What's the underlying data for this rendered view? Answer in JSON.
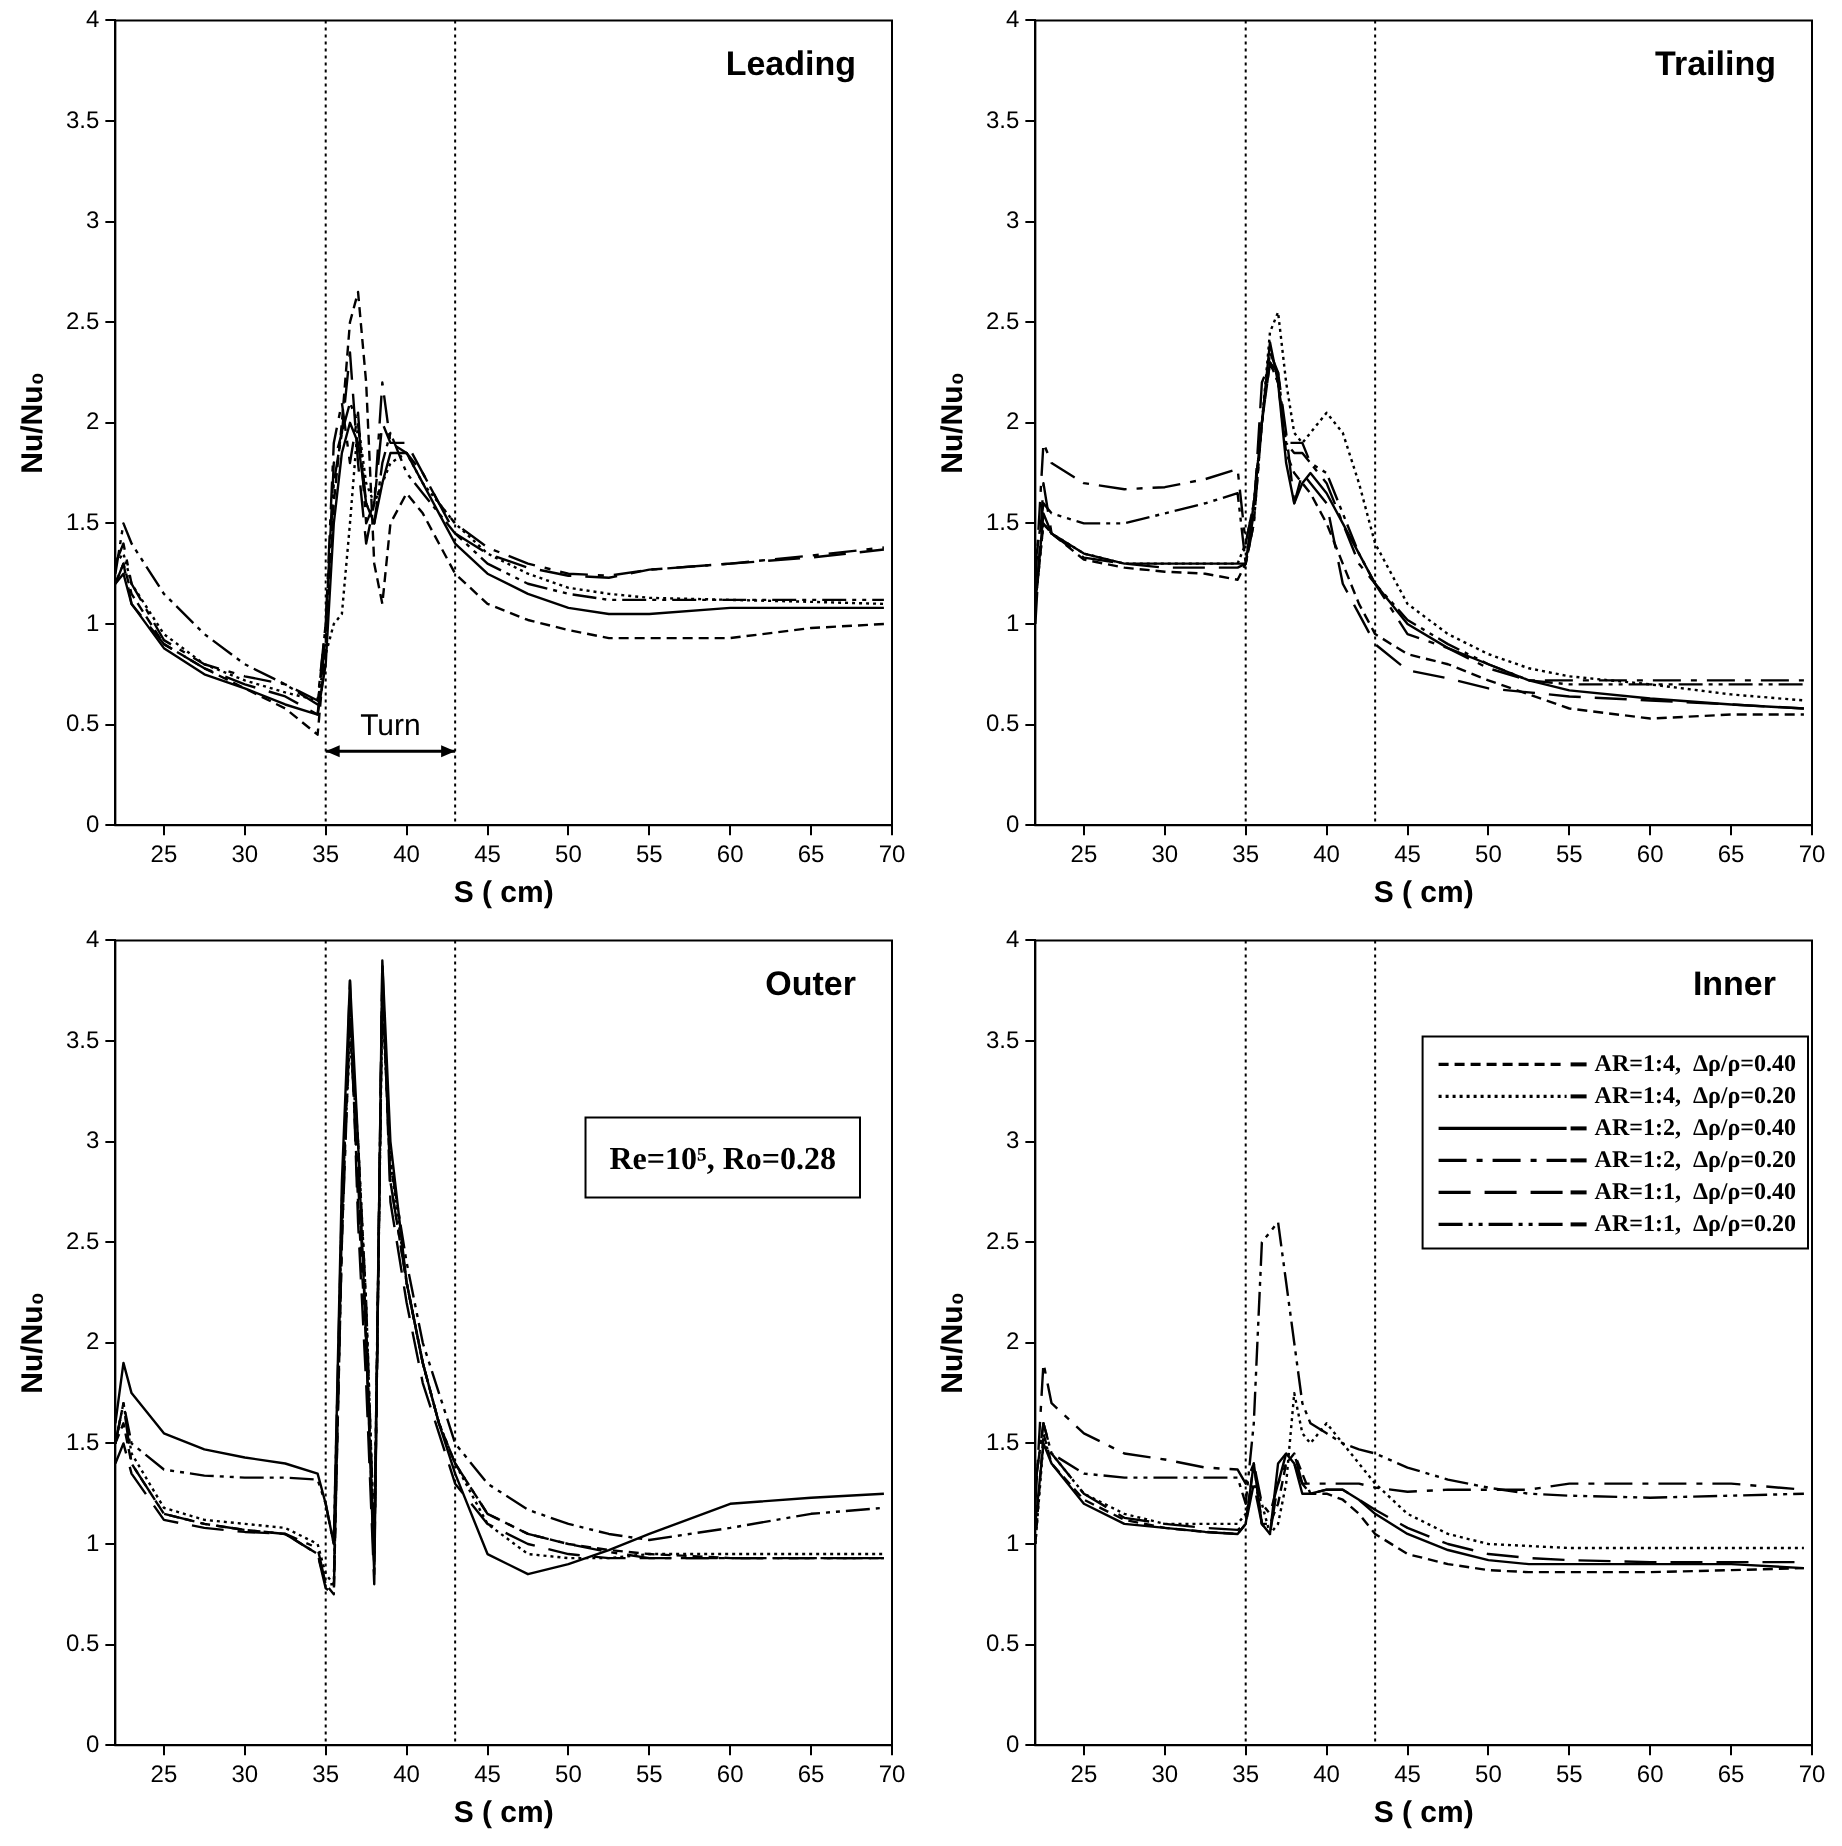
{
  "chart_data": [
    {
      "type": "line",
      "title": "Leading",
      "xlabel": "S ( cm)",
      "ylabel": "Nu/Nu₀",
      "xlim": [
        22,
        70
      ],
      "xticks": [
        25,
        30,
        35,
        40,
        45,
        50,
        55,
        60,
        65,
        70
      ],
      "ylim": [
        0,
        4
      ],
      "yticks": [
        0,
        0.5,
        1,
        1.5,
        2,
        2.5,
        3,
        3.5,
        4
      ],
      "grid": false,
      "legend": false,
      "x": [
        22,
        22.5,
        23,
        25,
        27.5,
        30,
        32.5,
        34.5,
        35,
        35.5,
        36,
        36.5,
        37,
        37.5,
        38,
        38.5,
        39,
        40,
        41,
        42,
        43,
        45,
        47.5,
        50,
        52.5,
        55,
        60,
        65,
        69.5
      ],
      "ref_lines": [
        {
          "axis": "x",
          "value": 35,
          "line_style": "dotted"
        },
        {
          "axis": "x",
          "value": 43,
          "line_style": "dotted"
        }
      ],
      "annotations": [
        "Turn"
      ],
      "series": [
        {
          "color": "#000000",
          "line_style": "dashed",
          "values": [
            1.2,
            1.3,
            1.15,
            0.9,
            0.78,
            0.68,
            0.58,
            0.45,
            0.9,
            1.6,
            2.0,
            2.5,
            2.65,
            2.2,
            1.3,
            1.1,
            1.5,
            1.65,
            1.55,
            1.4,
            1.25,
            1.1,
            1.02,
            0.97,
            0.93,
            0.93,
            0.93,
            0.98,
            1.0
          ]
        },
        {
          "color": "#000000",
          "line_style": "dotted",
          "values": [
            1.3,
            1.35,
            1.2,
            0.95,
            0.8,
            0.72,
            0.66,
            0.62,
            0.85,
            1.0,
            1.05,
            1.5,
            2.0,
            1.7,
            1.6,
            1.7,
            1.8,
            1.85,
            1.7,
            1.6,
            1.5,
            1.35,
            1.25,
            1.18,
            1.15,
            1.13,
            1.12,
            1.11,
            1.1
          ]
        },
        {
          "color": "#000000",
          "line_style": "solid",
          "values": [
            1.2,
            1.25,
            1.1,
            0.88,
            0.75,
            0.68,
            0.6,
            0.55,
            0.8,
            1.5,
            1.85,
            2.0,
            1.9,
            1.6,
            1.5,
            1.7,
            1.85,
            1.85,
            1.7,
            1.55,
            1.4,
            1.25,
            1.15,
            1.08,
            1.05,
            1.05,
            1.08,
            1.08,
            1.08
          ]
        },
        {
          "color": "#000000",
          "line_style": "dashed",
          "values": [
            1.3,
            1.4,
            1.2,
            0.92,
            0.8,
            0.74,
            0.7,
            0.62,
            1.0,
            1.9,
            2.1,
            1.8,
            2.05,
            1.5,
            1.6,
            2.2,
            1.9,
            1.85,
            1.75,
            1.6,
            1.5,
            1.38,
            1.3,
            1.25,
            1.24,
            1.27,
            1.3,
            1.34,
            1.38
          ]
        },
        {
          "color": "#000000",
          "line_style": "dashed",
          "values": [
            1.2,
            1.3,
            1.1,
            0.9,
            0.78,
            0.7,
            0.64,
            0.55,
            0.95,
            1.8,
            1.95,
            2.35,
            1.8,
            1.4,
            1.6,
            2.0,
            1.9,
            1.9,
            1.75,
            1.6,
            1.45,
            1.35,
            1.28,
            1.24,
            1.23,
            1.27,
            1.3,
            1.33,
            1.37
          ]
        },
        {
          "color": "#000000",
          "line_style": "dashed",
          "values": [
            1.25,
            1.5,
            1.4,
            1.15,
            0.95,
            0.8,
            0.7,
            0.6,
            1.0,
            1.7,
            1.95,
            2.1,
            2.0,
            1.6,
            1.5,
            1.8,
            1.95,
            1.75,
            1.65,
            1.55,
            1.45,
            1.3,
            1.2,
            1.15,
            1.12,
            1.12,
            1.12,
            1.12,
            1.12
          ]
        }
      ]
    },
    {
      "type": "line",
      "title": "Trailing",
      "xlabel": "S ( cm)",
      "ylabel": "Nu/Nu₀",
      "xlim": [
        22,
        70
      ],
      "xticks": [
        25,
        30,
        35,
        40,
        45,
        50,
        55,
        60,
        65,
        70
      ],
      "ylim": [
        0,
        4
      ],
      "yticks": [
        0,
        0.5,
        1,
        1.5,
        2,
        2.5,
        3,
        3.5,
        4
      ],
      "grid": false,
      "legend": false,
      "x": [
        22,
        22.5,
        23,
        25,
        27.5,
        30,
        32.5,
        34.5,
        35,
        35.5,
        36,
        36.5,
        37,
        37.5,
        38,
        38.5,
        39,
        40,
        41,
        42,
        43,
        45,
        47.5,
        50,
        52.5,
        55,
        60,
        65,
        69.5
      ],
      "ref_lines": [
        {
          "axis": "x",
          "value": 35,
          "line_style": "dotted"
        },
        {
          "axis": "x",
          "value": 43,
          "line_style": "dotted"
        }
      ],
      "series": [
        {
          "color": "#000000",
          "line_style": "dashed",
          "values": [
            1.1,
            1.5,
            1.45,
            1.32,
            1.28,
            1.26,
            1.25,
            1.22,
            1.3,
            1.5,
            2.0,
            2.3,
            2.2,
            1.85,
            1.75,
            1.7,
            1.65,
            1.5,
            1.3,
            1.1,
            0.95,
            0.85,
            0.8,
            0.72,
            0.65,
            0.58,
            0.53,
            0.55,
            0.55
          ]
        },
        {
          "color": "#000000",
          "line_style": "dotted",
          "values": [
            1.1,
            1.5,
            1.45,
            1.35,
            1.3,
            1.3,
            1.3,
            1.3,
            1.4,
            1.6,
            2.0,
            2.45,
            2.55,
            2.2,
            1.95,
            1.9,
            1.95,
            2.05,
            1.95,
            1.7,
            1.4,
            1.1,
            0.95,
            0.85,
            0.78,
            0.74,
            0.7,
            0.65,
            0.62
          ]
        },
        {
          "color": "#000000",
          "line_style": "solid",
          "values": [
            1.1,
            1.55,
            1.45,
            1.35,
            1.3,
            1.3,
            1.3,
            1.3,
            1.3,
            1.6,
            2.0,
            2.4,
            2.2,
            1.8,
            1.6,
            1.7,
            1.75,
            1.65,
            1.5,
            1.35,
            1.2,
            1.0,
            0.88,
            0.8,
            0.72,
            0.67,
            0.63,
            0.6,
            0.58
          ]
        },
        {
          "color": "#000000",
          "line_style": "dashed",
          "values": [
            1.2,
            1.9,
            1.8,
            1.7,
            1.67,
            1.68,
            1.72,
            1.77,
            1.4,
            1.6,
            2.0,
            2.3,
            2.2,
            1.9,
            1.9,
            1.9,
            1.8,
            1.7,
            1.5,
            1.3,
            1.2,
            0.95,
            0.88,
            0.78,
            0.72,
            0.72,
            0.72,
            0.72,
            0.72
          ]
        },
        {
          "color": "#000000",
          "line_style": "dashed",
          "values": [
            1.0,
            1.7,
            1.45,
            1.33,
            1.3,
            1.28,
            1.28,
            1.28,
            1.3,
            1.55,
            2.2,
            2.3,
            2.25,
            1.95,
            1.6,
            1.75,
            1.7,
            1.6,
            1.2,
            1.05,
            0.9,
            0.77,
            0.73,
            0.68,
            0.66,
            0.64,
            0.62,
            0.6,
            0.58
          ]
        },
        {
          "color": "#000000",
          "line_style": "dashed",
          "values": [
            1.3,
            1.6,
            1.55,
            1.5,
            1.5,
            1.55,
            1.6,
            1.65,
            1.3,
            1.5,
            2.0,
            2.35,
            2.25,
            1.9,
            1.85,
            1.85,
            1.8,
            1.75,
            1.55,
            1.35,
            1.2,
            1.02,
            0.9,
            0.8,
            0.72,
            0.7,
            0.7,
            0.7,
            0.7
          ]
        }
      ]
    },
    {
      "type": "line",
      "title": "Outer",
      "xlabel": "S ( cm)",
      "ylabel": "Nu/Nu₀",
      "xlim": [
        22,
        70
      ],
      "xticks": [
        25,
        30,
        35,
        40,
        45,
        50,
        55,
        60,
        65,
        70
      ],
      "ylim": [
        0,
        4
      ],
      "yticks": [
        0,
        0.5,
        1,
        1.5,
        2,
        2.5,
        3,
        3.5,
        4
      ],
      "grid": false,
      "legend": false,
      "x": [
        22,
        22.5,
        23,
        25,
        27.5,
        30,
        32.5,
        34.5,
        35,
        35.5,
        36,
        36.5,
        37,
        37.5,
        38,
        38.5,
        39,
        40,
        41,
        42,
        43,
        45,
        47.5,
        50,
        52.5,
        55,
        60,
        65,
        69.5
      ],
      "ref_lines": [
        {
          "axis": "x",
          "value": 35,
          "line_style": "dotted"
        },
        {
          "axis": "x",
          "value": 43,
          "line_style": "dotted"
        }
      ],
      "annotations": [
        "Re=10⁵, Ro=0.28"
      ],
      "series": [
        {
          "color": "#000000",
          "line_style": "dashed",
          "values": [
            1.5,
            1.6,
            1.4,
            1.15,
            1.1,
            1.07,
            1.05,
            0.95,
            0.8,
            0.75,
            2.5,
            3.7,
            2.7,
            2.0,
            0.9,
            3.8,
            2.8,
            2.3,
            1.9,
            1.6,
            1.4,
            1.15,
            1.05,
            1.0,
            0.97,
            0.95,
            0.93,
            0.93,
            0.93
          ]
        },
        {
          "color": "#000000",
          "line_style": "dotted",
          "values": [
            1.5,
            1.7,
            1.45,
            1.18,
            1.12,
            1.1,
            1.08,
            1.0,
            0.85,
            0.8,
            2.7,
            3.5,
            3.0,
            2.2,
            1.0,
            3.7,
            2.9,
            2.3,
            1.9,
            1.6,
            1.4,
            1.1,
            0.95,
            0.93,
            0.93,
            0.95,
            0.95,
            0.95,
            0.95
          ]
        },
        {
          "color": "#000000",
          "line_style": "solid",
          "values": [
            1.6,
            1.9,
            1.75,
            1.55,
            1.47,
            1.43,
            1.4,
            1.35,
            1.2,
            1.0,
            2.8,
            3.8,
            3.0,
            2.0,
            0.85,
            3.9,
            3.0,
            2.3,
            1.9,
            1.6,
            1.35,
            0.95,
            0.85,
            0.9,
            0.97,
            1.05,
            1.2,
            1.23,
            1.25
          ]
        },
        {
          "color": "#000000",
          "line_style": "dashed",
          "values": [
            1.5,
            1.7,
            1.4,
            1.15,
            1.1,
            1.07,
            1.05,
            0.98,
            0.8,
            0.8,
            2.5,
            3.6,
            2.8,
            2.1,
            0.9,
            3.8,
            2.8,
            2.3,
            1.9,
            1.6,
            1.4,
            1.15,
            1.05,
            1.0,
            0.96,
            0.93,
            0.93,
            0.93,
            0.93
          ]
        },
        {
          "color": "#000000",
          "line_style": "dashed",
          "values": [
            1.4,
            1.5,
            1.35,
            1.12,
            1.08,
            1.06,
            1.05,
            0.95,
            0.78,
            0.75,
            2.6,
            3.8,
            2.6,
            1.8,
            0.8,
            3.9,
            2.7,
            2.2,
            1.8,
            1.55,
            1.3,
            1.1,
            1.0,
            0.95,
            0.93,
            0.93,
            0.93,
            0.93,
            0.93
          ]
        },
        {
          "color": "#000000",
          "line_style": "dashed",
          "values": [
            1.5,
            1.7,
            1.5,
            1.37,
            1.34,
            1.33,
            1.33,
            1.32,
            1.2,
            1.0,
            2.7,
            3.6,
            3.0,
            2.2,
            1.0,
            3.8,
            2.9,
            2.4,
            2.0,
            1.75,
            1.5,
            1.3,
            1.17,
            1.1,
            1.05,
            1.02,
            1.08,
            1.15,
            1.18
          ]
        }
      ]
    },
    {
      "type": "line",
      "title": "Inner",
      "xlabel": "S ( cm)",
      "ylabel": "Nu/Nu₀",
      "xlim": [
        22,
        70
      ],
      "xticks": [
        25,
        30,
        35,
        40,
        45,
        50,
        55,
        60,
        65,
        70
      ],
      "ylim": [
        0,
        4
      ],
      "yticks": [
        0,
        0.5,
        1,
        1.5,
        2,
        2.5,
        3,
        3.5,
        4
      ],
      "grid": false,
      "legend": "top right",
      "x": [
        22,
        22.5,
        23,
        25,
        27.5,
        30,
        32.5,
        34.5,
        35,
        35.5,
        36,
        36.5,
        37,
        37.5,
        38,
        38.5,
        39,
        40,
        41,
        42,
        43,
        45,
        47.5,
        50,
        52.5,
        55,
        60,
        65,
        69.5
      ],
      "ref_lines": [
        {
          "axis": "x",
          "value": 35,
          "line_style": "dotted"
        },
        {
          "axis": "x",
          "value": 43,
          "line_style": "dotted"
        }
      ],
      "series": [
        {
          "name": "AR=1:4,  Δρ/ρ=0.40",
          "color": "#000000",
          "line_style": "dashed",
          "values": [
            1.0,
            1.55,
            1.4,
            1.22,
            1.12,
            1.08,
            1.06,
            1.05,
            1.1,
            1.4,
            1.1,
            1.1,
            1.2,
            1.4,
            1.45,
            1.35,
            1.25,
            1.25,
            1.22,
            1.15,
            1.05,
            0.95,
            0.9,
            0.87,
            0.86,
            0.86,
            0.86,
            0.87,
            0.88
          ]
        },
        {
          "name": "AR=1:4,  Δρ/ρ=0.20",
          "color": "#000000",
          "line_style": "dotted",
          "values": [
            1.0,
            1.5,
            1.45,
            1.25,
            1.15,
            1.1,
            1.1,
            1.1,
            1.15,
            1.3,
            1.2,
            1.05,
            1.1,
            1.3,
            1.75,
            1.55,
            1.5,
            1.6,
            1.5,
            1.4,
            1.3,
            1.15,
            1.05,
            1.0,
            0.99,
            0.98,
            0.98,
            0.98,
            0.98
          ]
        },
        {
          "name": "AR=1:2,  Δρ/ρ=0.40",
          "color": "#000000",
          "line_style": "solid",
          "values": [
            1.1,
            1.5,
            1.4,
            1.2,
            1.1,
            1.08,
            1.06,
            1.05,
            1.1,
            1.4,
            1.1,
            1.05,
            1.4,
            1.45,
            1.4,
            1.25,
            1.25,
            1.27,
            1.27,
            1.22,
            1.15,
            1.05,
            0.97,
            0.92,
            0.9,
            0.9,
            0.9,
            0.9,
            0.88
          ]
        },
        {
          "name": "AR=1:2,  Δρ/ρ=0.20",
          "color": "#000000",
          "line_style": "dashed",
          "values": [
            1.2,
            1.9,
            1.7,
            1.55,
            1.45,
            1.42,
            1.38,
            1.37,
            1.3,
            1.4,
            1.2,
            1.15,
            1.3,
            1.4,
            1.4,
            1.3,
            1.3,
            1.3,
            1.3,
            1.3,
            1.28,
            1.26,
            1.27,
            1.27,
            1.27,
            1.3,
            1.3,
            1.3,
            1.27
          ]
        },
        {
          "name": "AR=1:1,  Δρ/ρ=0.40",
          "color": "#000000",
          "line_style": "dashed",
          "values": [
            1.3,
            1.6,
            1.45,
            1.25,
            1.13,
            1.1,
            1.08,
            1.07,
            1.1,
            1.3,
            1.1,
            1.05,
            1.3,
            1.45,
            1.45,
            1.3,
            1.25,
            1.27,
            1.27,
            1.22,
            1.17,
            1.08,
            1.0,
            0.95,
            0.93,
            0.92,
            0.91,
            0.91,
            0.91
          ]
        },
        {
          "name": "AR=1:1,  Δρ/ρ=0.20",
          "color": "#000000",
          "line_style": "dashed",
          "values": [
            1.3,
            1.6,
            1.45,
            1.35,
            1.33,
            1.33,
            1.33,
            1.33,
            1.2,
            1.6,
            2.5,
            2.55,
            2.6,
            2.3,
            2.0,
            1.7,
            1.6,
            1.55,
            1.5,
            1.47,
            1.45,
            1.38,
            1.32,
            1.28,
            1.25,
            1.24,
            1.23,
            1.24,
            1.25
          ]
        }
      ]
    }
  ]
}
